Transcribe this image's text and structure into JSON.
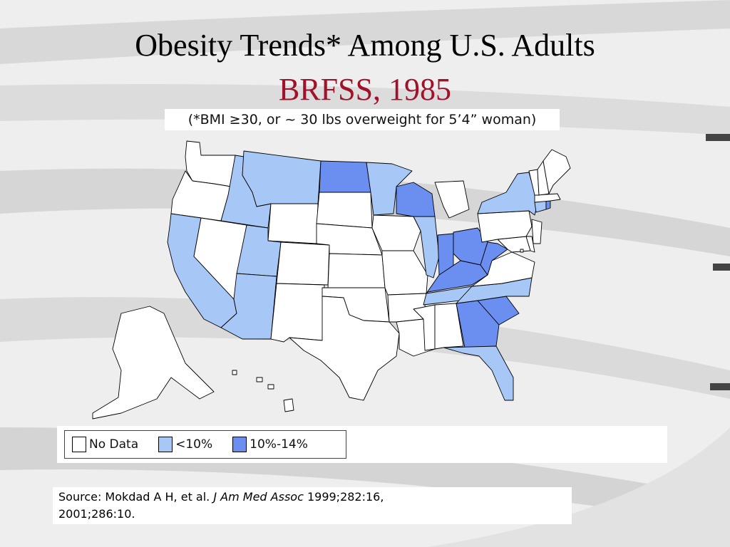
{
  "slide": {
    "title_line1": "Obesity Trends* Among U.S. Adults",
    "title_line2": "BRFSS, 1985",
    "subtitle": "(*BMI ≥30, or ~ 30 lbs overweight for 5’4” woman)",
    "source_prefix": "Source: Mokdad A H, et al. ",
    "source_journal": "J Am Med Assoc",
    "source_suffix": " 1999;282:16,",
    "source_line2": "2001;286:10."
  },
  "colors": {
    "no_data": "#ffffff",
    "lt10": "#a7c7f7",
    "p10_14": "#6b8ff0",
    "title_accent": "#a0122a"
  },
  "legend": [
    {
      "label": "No Data",
      "category": "no_data"
    },
    {
      "label": "<10%",
      "category": "lt10"
    },
    {
      "label": "10%-14%",
      "category": "p10_14"
    }
  ],
  "map": {
    "states": {
      "WA": "no_data",
      "OR": "no_data",
      "CA": "lt10",
      "ID": "lt10",
      "NV": "no_data",
      "MT": "lt10",
      "WY": "no_data",
      "UT": "lt10",
      "AZ": "lt10",
      "CO": "no_data",
      "NM": "no_data",
      "ND": "p10_14",
      "SD": "no_data",
      "NE": "no_data",
      "KS": "no_data",
      "OK": "no_data",
      "TX": "no_data",
      "MN": "lt10",
      "IA": "no_data",
      "MO": "no_data",
      "AR": "no_data",
      "LA": "no_data",
      "WI": "p10_14",
      "IL": "lt10",
      "MI": "no_data",
      "IN": "p10_14",
      "OH": "p10_14",
      "KY": "p10_14",
      "TN": "lt10",
      "MS": "no_data",
      "AL": "no_data",
      "GA": "p10_14",
      "FL": "lt10",
      "SC": "p10_14",
      "NC": "lt10",
      "VA": "no_data",
      "WV": "p10_14",
      "MD": "no_data",
      "DE": "no_data",
      "NJ": "no_data",
      "PA": "no_data",
      "NY": "lt10",
      "CT": "lt10",
      "RI": "p10_14",
      "MA": "no_data",
      "VT": "no_data",
      "NH": "no_data",
      "ME": "no_data",
      "DC": "no_data",
      "AK": "no_data",
      "HI": "no_data"
    }
  }
}
